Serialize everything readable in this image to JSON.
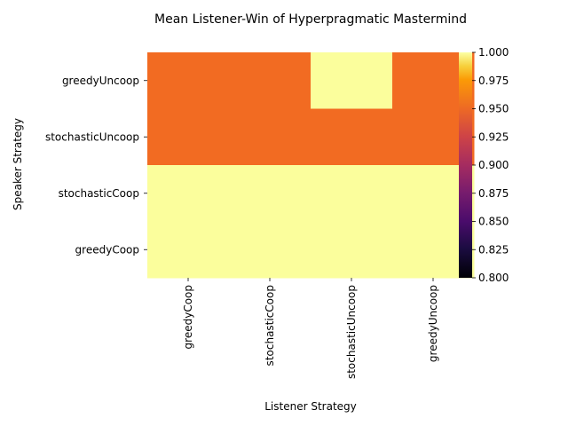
{
  "chart_data": {
    "type": "heatmap",
    "title": "Mean Listener-Win of Hyperpragmatic Mastermind",
    "xlabel": "Listener Strategy",
    "ylabel": "Speaker Strategy",
    "x_categories": [
      "greedyCoop",
      "stochasticCoop",
      "stochasticUncoop",
      "greedyUncoop"
    ],
    "y_categories": [
      "greedyUncoop",
      "stochasticUncoop",
      "stochasticCoop",
      "greedyCoop"
    ],
    "values": [
      [
        0.94,
        0.94,
        1.0,
        0.94
      ],
      [
        0.94,
        0.94,
        0.94,
        0.94
      ],
      [
        1.0,
        1.0,
        1.0,
        1.0
      ],
      [
        1.0,
        1.0,
        1.0,
        1.0
      ]
    ],
    "colormap": "inferno",
    "vmin": 0.8,
    "vmax": 1.0,
    "colorbar_ticks": [
      "0.800",
      "0.825",
      "0.850",
      "0.875",
      "0.900",
      "0.925",
      "0.950",
      "0.975",
      "1.000"
    ],
    "colors": {
      "cell_low": "#f26b22",
      "cell_high": "#fbfe9c"
    }
  }
}
